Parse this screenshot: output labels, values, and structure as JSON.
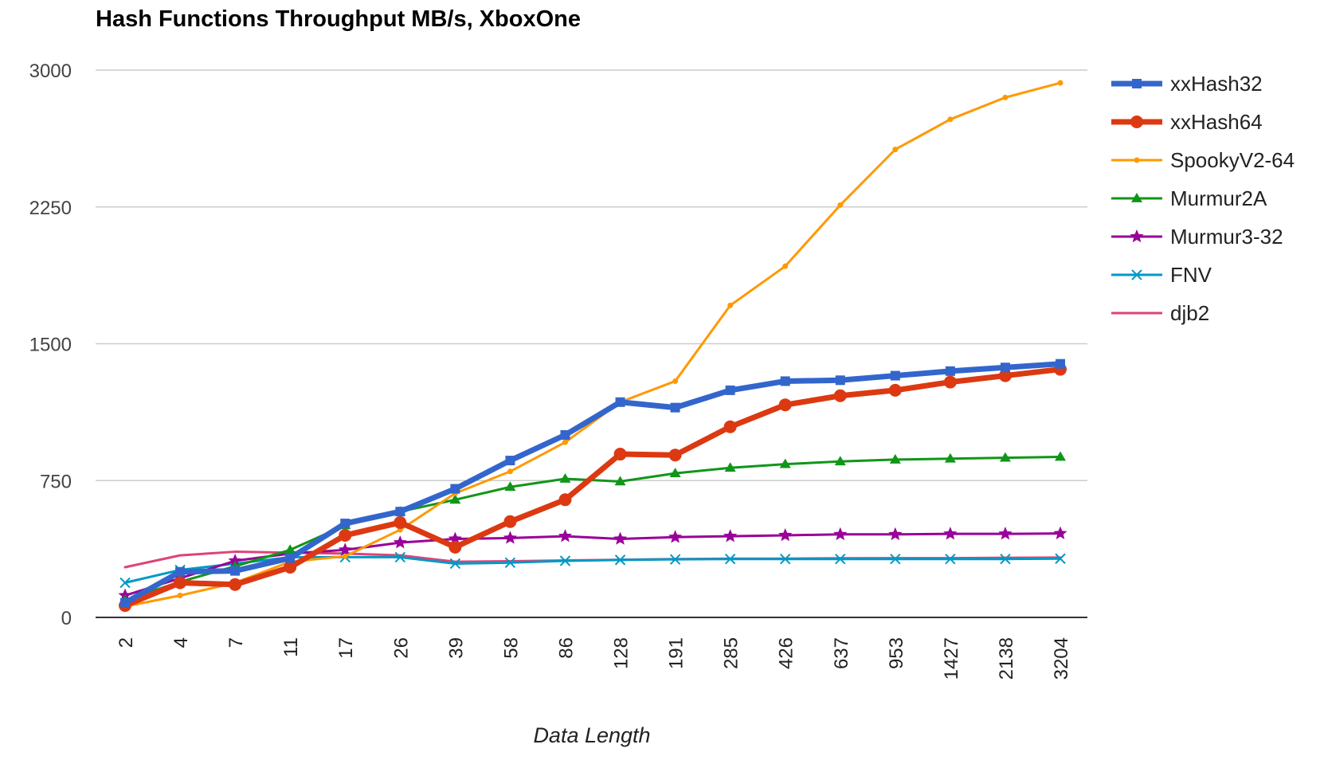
{
  "chart_data": {
    "type": "line",
    "title": "Hash Functions Throughput MB/s, XboxOne",
    "xlabel": "Data Length",
    "ylabel": "",
    "ylim": [
      0,
      3000
    ],
    "yticks": [
      "0",
      "750",
      "1500",
      "2250",
      "3000"
    ],
    "categories": [
      "2",
      "4",
      "7",
      "11",
      "17",
      "26",
      "39",
      "58",
      "86",
      "128",
      "191",
      "285",
      "426",
      "637",
      "953",
      "1427",
      "2138",
      "3204"
    ],
    "grid": true,
    "legend_position": "right",
    "series": [
      {
        "name": "xxHash32",
        "color": "#3366cc",
        "marker": "square",
        "width": 7,
        "values": [
          80,
          250,
          255,
          325,
          515,
          580,
          705,
          860,
          1000,
          1180,
          1150,
          1245,
          1295,
          1300,
          1325,
          1350,
          1370,
          1390
        ]
      },
      {
        "name": "xxHash64",
        "color": "#dc3912",
        "marker": "circle",
        "width": 7,
        "values": [
          65,
          190,
          180,
          275,
          450,
          520,
          385,
          525,
          645,
          895,
          890,
          1045,
          1165,
          1215,
          1245,
          1290,
          1325,
          1360
        ]
      },
      {
        "name": "SpookyV2-64",
        "color": "#ff9900",
        "marker": "dot",
        "width": 3,
        "values": [
          60,
          120,
          190,
          305,
          335,
          480,
          680,
          800,
          960,
          1180,
          1295,
          1710,
          1925,
          2260,
          2565,
          2730,
          2850,
          2930
        ]
      },
      {
        "name": "Murmur2A",
        "color": "#109618",
        "marker": "triangle",
        "width": 3,
        "values": [
          95,
          195,
          280,
          370,
          505,
          580,
          645,
          715,
          760,
          745,
          790,
          820,
          840,
          855,
          865,
          870,
          875,
          880
        ]
      },
      {
        "name": "Murmur3-32",
        "color": "#990099",
        "marker": "star",
        "width": 3,
        "values": [
          120,
          215,
          310,
          350,
          370,
          410,
          430,
          435,
          445,
          430,
          440,
          445,
          450,
          455,
          455,
          458,
          458,
          460
        ]
      },
      {
        "name": "FNV",
        "color": "#0099c6",
        "marker": "x",
        "width": 3,
        "values": [
          190,
          260,
          295,
          330,
          330,
          330,
          295,
          300,
          310,
          315,
          318,
          320,
          320,
          320,
          320,
          320,
          320,
          322
        ]
      },
      {
        "name": "djb2",
        "color": "#dd4477",
        "marker": "none",
        "width": 3,
        "values": [
          275,
          340,
          360,
          355,
          350,
          340,
          305,
          308,
          312,
          316,
          320,
          322,
          322,
          324,
          325,
          325,
          327,
          328
        ]
      }
    ]
  }
}
